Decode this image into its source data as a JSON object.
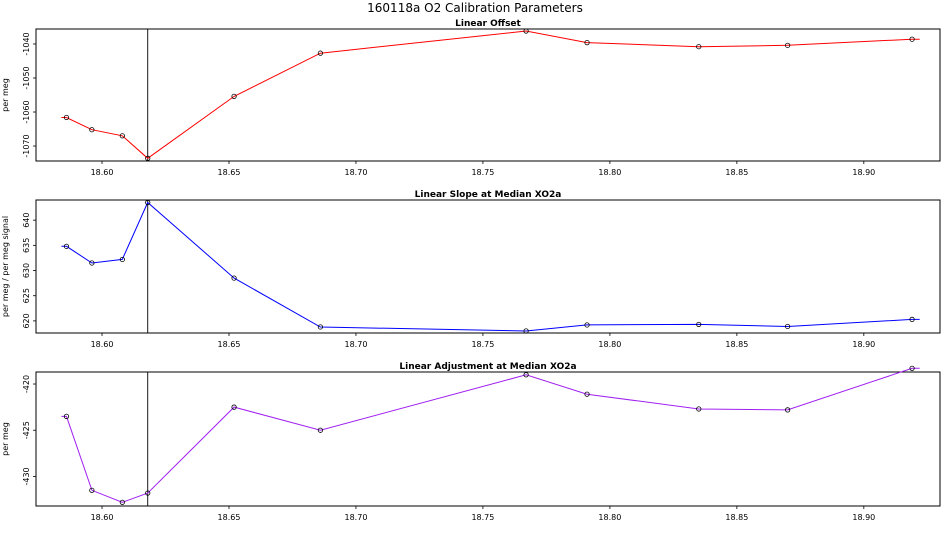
{
  "figure": {
    "title": "160118a   O2 Calibration Parameters"
  },
  "chart_data": [
    {
      "type": "line",
      "title": "Linear Offset",
      "xlabel": "",
      "ylabel": "per meg",
      "color": "#ff0000",
      "xlim": [
        18.574,
        18.93
      ],
      "ylim": [
        -1074.4,
        -1035.6
      ],
      "xticks": [
        "18.60",
        "18.65",
        "18.70",
        "18.75",
        "18.80",
        "18.85",
        "18.90"
      ],
      "yticks": [
        "-1070",
        "-1060",
        "-1050",
        "-1040"
      ],
      "marker_line_x": 18.618,
      "x": [
        18.586,
        18.596,
        18.608,
        18.618,
        18.652,
        18.686,
        18.767,
        18.791,
        18.835,
        18.87,
        18.919
      ],
      "values": [
        -1061.6,
        -1065.2,
        -1067.0,
        -1073.6,
        -1055.4,
        -1042.7,
        -1036.2,
        -1039.6,
        -1040.8,
        -1040.4,
        -1038.6
      ],
      "line_start": [
        18.584,
        -1061.6
      ],
      "line_end": [
        18.922,
        -1038.6
      ]
    },
    {
      "type": "line",
      "title": "Linear Slope at Median XO2a",
      "xlabel": "",
      "ylabel": "per meg / per meg signal",
      "color": "#0000ff",
      "xlim": [
        18.574,
        18.93
      ],
      "ylim": [
        617.6,
        644.0
      ],
      "xticks": [
        "18.60",
        "18.65",
        "18.70",
        "18.75",
        "18.80",
        "18.85",
        "18.90"
      ],
      "yticks": [
        "620",
        "625",
        "630",
        "635",
        "640"
      ],
      "marker_line_x": 18.618,
      "x": [
        18.586,
        18.596,
        18.608,
        18.618,
        18.652,
        18.686,
        18.767,
        18.791,
        18.835,
        18.87,
        18.919
      ],
      "values": [
        634.8,
        631.5,
        632.2,
        643.5,
        628.5,
        618.8,
        618.0,
        619.2,
        619.3,
        618.9,
        620.3
      ],
      "line_start": [
        18.584,
        634.8
      ],
      "line_end": [
        18.922,
        620.3
      ]
    },
    {
      "type": "line",
      "title": "Linear Adjustment at Median XO2a",
      "xlabel": "",
      "ylabel": "per meg",
      "color": "#a020f0",
      "xlim": [
        18.574,
        18.93
      ],
      "ylim": [
        -433.2,
        -418.7
      ],
      "xticks": [
        "18.60",
        "18.65",
        "18.70",
        "18.75",
        "18.80",
        "18.85",
        "18.90"
      ],
      "yticks": [
        "-430",
        "-425",
        "-420"
      ],
      "marker_line_x": 18.618,
      "x": [
        18.586,
        18.596,
        18.608,
        18.618,
        18.652,
        18.686,
        18.767,
        18.791,
        18.835,
        18.87,
        18.919
      ],
      "values": [
        -423.5,
        -431.5,
        -432.8,
        -431.8,
        -422.5,
        -425.0,
        -419.0,
        -421.1,
        -422.7,
        -422.8,
        -418.3
      ],
      "line_start": [
        18.584,
        -423.5
      ],
      "line_end": [
        18.922,
        -418.3
      ]
    }
  ]
}
